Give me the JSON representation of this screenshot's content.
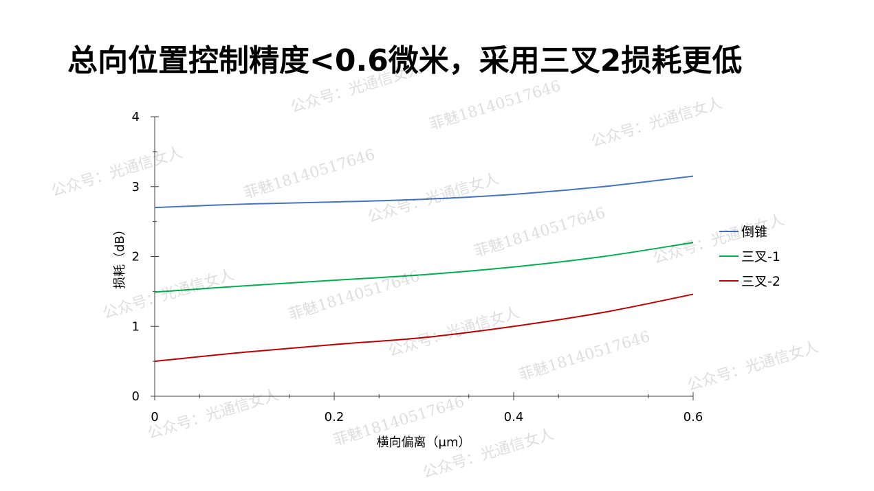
{
  "title": "总向位置控制精度<0.6微米，采用三叉2损耗更低",
  "watermarks": [
    "公众号：光通信女人",
    "菲魅18140517646"
  ],
  "chart_data": {
    "type": "line",
    "xlabel": "横向偏离（μm）",
    "ylabel": "损耗（dB）",
    "xlim": [
      0,
      0.6
    ],
    "ylim": [
      0,
      4
    ],
    "xticks": [
      "0",
      "0.2",
      "0.4",
      "0.6"
    ],
    "yticks": [
      "0",
      "1",
      "2",
      "3",
      "4"
    ],
    "grid": false,
    "legend_position": "right",
    "series": [
      {
        "name": "倒锥",
        "color": "#4472c4",
        "x": [
          0,
          0.1,
          0.2,
          0.3,
          0.4,
          0.5,
          0.6
        ],
        "y": [
          2.7,
          2.75,
          2.78,
          2.82,
          2.89,
          3.0,
          3.15
        ]
      },
      {
        "name": "三叉-1",
        "color": "#00b050",
        "x": [
          0,
          0.1,
          0.2,
          0.3,
          0.4,
          0.5,
          0.6
        ],
        "y": [
          1.49,
          1.58,
          1.66,
          1.74,
          1.85,
          2.0,
          2.2
        ]
      },
      {
        "name": "三叉-2",
        "color": "#c00000",
        "x": [
          0,
          0.1,
          0.2,
          0.3,
          0.4,
          0.5,
          0.6
        ],
        "y": [
          0.5,
          0.63,
          0.74,
          0.84,
          1.0,
          1.2,
          1.46
        ]
      }
    ]
  }
}
